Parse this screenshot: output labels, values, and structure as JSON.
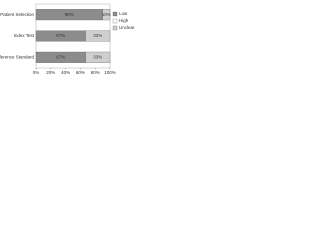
{
  "chart_data": {
    "type": "stacked-barh",
    "categories": [
      "Patient Selection",
      "Index Test",
      "Reference Standard"
    ],
    "series": [
      {
        "name": "Low",
        "color": "#8c8c8c",
        "values": [
          90,
          67,
          67
        ],
        "value_labels": [
          "90%",
          "67%",
          "67%"
        ]
      },
      {
        "name": "High",
        "color": "#ffffff",
        "values": [
          0,
          0,
          0
        ]
      },
      {
        "name": "Unclear",
        "color": "#cfcfcf",
        "values": [
          10,
          33,
          33
        ],
        "value_labels": [
          "10%",
          "33%",
          "33%"
        ]
      }
    ],
    "xlim": [
      0,
      100
    ],
    "xticks": [
      {
        "value": 0,
        "label": "0%"
      },
      {
        "value": 20,
        "label": "20%"
      },
      {
        "value": 40,
        "label": "40%"
      },
      {
        "value": 60,
        "label": "60%"
      },
      {
        "value": 80,
        "label": "80%"
      },
      {
        "value": 100,
        "label": "100%"
      }
    ],
    "legend": "right"
  }
}
